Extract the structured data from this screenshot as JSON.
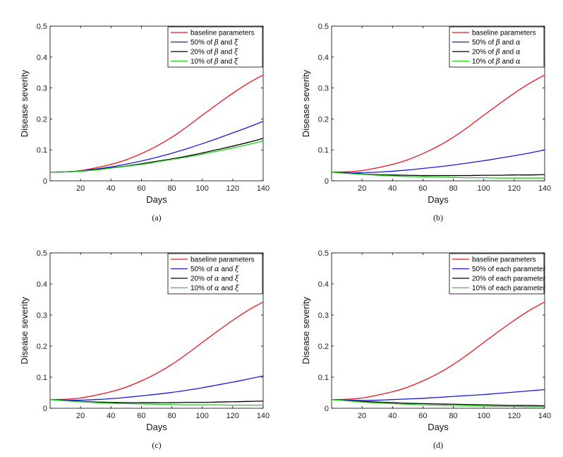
{
  "chart_data": [
    {
      "type": "line",
      "caption": "(a)",
      "xlabel": "Days",
      "ylabel": "Disease severity",
      "xlim": [
        0,
        140
      ],
      "ylim": [
        0,
        0.5
      ],
      "xticks": [
        20,
        40,
        60,
        80,
        100,
        120,
        140
      ],
      "yticks": [
        0,
        0.1,
        0.2,
        0.3,
        0.4,
        0.5
      ],
      "legend_position": "top-right",
      "x": [
        0,
        10,
        20,
        30,
        40,
        50,
        60,
        70,
        80,
        90,
        100,
        110,
        120,
        130,
        140
      ],
      "series": [
        {
          "name": "baseline parameters",
          "color": "#e8141a",
          "legend": [
            "baseline parameters"
          ],
          "values": [
            0.028,
            0.029,
            0.033,
            0.042,
            0.053,
            0.068,
            0.088,
            0.112,
            0.141,
            0.175,
            0.212,
            0.248,
            0.283,
            0.315,
            0.342
          ]
        },
        {
          "name": "50% of β and ξ",
          "color": "#1a1adc",
          "legend": [
            "50% of ",
            "β",
            " and ",
            "ξ"
          ],
          "values": [
            0.028,
            0.029,
            0.032,
            0.038,
            0.045,
            0.054,
            0.064,
            0.076,
            0.089,
            0.104,
            0.12,
            0.137,
            0.155,
            0.173,
            0.192
          ]
        },
        {
          "name": "20% of β and ξ",
          "color": "#000000",
          "legend": [
            "20% of ",
            "β",
            " and ",
            "ξ"
          ],
          "values": [
            0.028,
            0.029,
            0.031,
            0.036,
            0.042,
            0.048,
            0.055,
            0.063,
            0.071,
            0.08,
            0.09,
            0.101,
            0.112,
            0.124,
            0.137
          ]
        },
        {
          "name": "10% of β and ξ",
          "color": "#1ed21e",
          "legend": [
            "10% of ",
            "β",
            " and ",
            "ξ"
          ],
          "values": [
            0.028,
            0.029,
            0.031,
            0.035,
            0.041,
            0.047,
            0.053,
            0.061,
            0.069,
            0.077,
            0.086,
            0.096,
            0.106,
            0.117,
            0.129
          ]
        }
      ]
    },
    {
      "type": "line",
      "caption": "(b)",
      "xlabel": "Days",
      "ylabel": "Disease severity",
      "xlim": [
        0,
        140
      ],
      "ylim": [
        0,
        0.5
      ],
      "xticks": [
        20,
        40,
        60,
        80,
        100,
        120,
        140
      ],
      "yticks": [
        0,
        0.1,
        0.2,
        0.3,
        0.4,
        0.5
      ],
      "legend_position": "top-right",
      "x": [
        0,
        10,
        20,
        30,
        40,
        50,
        60,
        70,
        80,
        90,
        100,
        110,
        120,
        130,
        140
      ],
      "series": [
        {
          "name": "baseline parameters",
          "color": "#e8141a",
          "legend": [
            "baseline parameters"
          ],
          "values": [
            0.028,
            0.029,
            0.033,
            0.042,
            0.053,
            0.068,
            0.088,
            0.112,
            0.141,
            0.175,
            0.212,
            0.248,
            0.283,
            0.315,
            0.342
          ]
        },
        {
          "name": "50% of β and α",
          "color": "#1a1adc",
          "legend": [
            "50% of ",
            "β",
            " and ",
            "α"
          ],
          "values": [
            0.028,
            0.026,
            0.026,
            0.028,
            0.031,
            0.035,
            0.04,
            0.045,
            0.051,
            0.058,
            0.065,
            0.073,
            0.081,
            0.09,
            0.1
          ]
        },
        {
          "name": "20% of β and α",
          "color": "#000000",
          "legend": [
            "20% of ",
            "β",
            " and ",
            "α"
          ],
          "values": [
            0.028,
            0.025,
            0.022,
            0.02,
            0.019,
            0.018,
            0.017,
            0.017,
            0.017,
            0.017,
            0.018,
            0.018,
            0.019,
            0.019,
            0.02
          ]
        },
        {
          "name": "10% of β and α",
          "color": "#1ed21e",
          "legend": [
            "10% of ",
            "β",
            " and ",
            "α"
          ],
          "values": [
            0.028,
            0.024,
            0.021,
            0.018,
            0.016,
            0.014,
            0.013,
            0.012,
            0.011,
            0.01,
            0.01,
            0.009,
            0.009,
            0.009,
            0.009
          ]
        }
      ]
    },
    {
      "type": "line",
      "caption": "(c)",
      "xlabel": "Days",
      "ylabel": "Disease severity",
      "xlim": [
        0,
        140
      ],
      "ylim": [
        0,
        0.5
      ],
      "xticks": [
        20,
        40,
        60,
        80,
        100,
        120,
        140
      ],
      "yticks": [
        0,
        0.1,
        0.2,
        0.3,
        0.4,
        0.5
      ],
      "legend_position": "top-right",
      "x": [
        0,
        10,
        20,
        30,
        40,
        50,
        60,
        70,
        80,
        90,
        100,
        110,
        120,
        130,
        140
      ],
      "series": [
        {
          "name": "baseline parameters",
          "color": "#e8141a",
          "legend": [
            "baseline parameters"
          ],
          "values": [
            0.028,
            0.029,
            0.033,
            0.042,
            0.053,
            0.068,
            0.088,
            0.112,
            0.141,
            0.175,
            0.212,
            0.248,
            0.283,
            0.315,
            0.342
          ]
        },
        {
          "name": "50% of α and ξ",
          "color": "#1a1adc",
          "legend": [
            "50% of ",
            "α",
            " and ",
            "ξ"
          ],
          "values": [
            0.028,
            0.026,
            0.026,
            0.028,
            0.031,
            0.035,
            0.04,
            0.045,
            0.051,
            0.058,
            0.066,
            0.075,
            0.084,
            0.094,
            0.104
          ]
        },
        {
          "name": "20% of α and ξ",
          "color": "#000000",
          "legend": [
            "20% of ",
            "α",
            " and ",
            "ξ"
          ],
          "values": [
            0.028,
            0.025,
            0.022,
            0.02,
            0.019,
            0.018,
            0.018,
            0.018,
            0.018,
            0.019,
            0.019,
            0.02,
            0.021,
            0.022,
            0.023
          ]
        },
        {
          "name": "10% of α and ξ",
          "color": "#1ed21e",
          "legend": [
            "10% of ",
            "α",
            " and ",
            "ξ"
          ],
          "values": [
            0.028,
            0.024,
            0.021,
            0.018,
            0.016,
            0.015,
            0.014,
            0.013,
            0.012,
            0.011,
            0.011,
            0.011,
            0.01,
            0.01,
            0.01
          ]
        }
      ]
    },
    {
      "type": "line",
      "caption": "(d)",
      "xlabel": "Days",
      "ylabel": "Disease severity",
      "xlim": [
        0,
        140
      ],
      "ylim": [
        0,
        0.5
      ],
      "xticks": [
        20,
        40,
        60,
        80,
        100,
        120,
        140
      ],
      "yticks": [
        0,
        0.1,
        0.2,
        0.3,
        0.4,
        0.5
      ],
      "legend_position": "top-right",
      "x": [
        0,
        10,
        20,
        30,
        40,
        50,
        60,
        70,
        80,
        90,
        100,
        110,
        120,
        130,
        140
      ],
      "series": [
        {
          "name": "baseline parameters",
          "color": "#e8141a",
          "legend": [
            "baseline parameters"
          ],
          "values": [
            0.028,
            0.029,
            0.033,
            0.042,
            0.053,
            0.068,
            0.088,
            0.112,
            0.141,
            0.175,
            0.212,
            0.248,
            0.283,
            0.315,
            0.342
          ]
        },
        {
          "name": "50% of each parameter",
          "color": "#1a1adc",
          "legend": [
            "50% of each parameter"
          ],
          "values": [
            0.028,
            0.026,
            0.025,
            0.026,
            0.028,
            0.03,
            0.032,
            0.035,
            0.038,
            0.041,
            0.044,
            0.048,
            0.052,
            0.056,
            0.06
          ]
        },
        {
          "name": "20% of each parameter",
          "color": "#000000",
          "legend": [
            "20% of each parameter"
          ],
          "values": [
            0.028,
            0.025,
            0.022,
            0.02,
            0.018,
            0.016,
            0.015,
            0.014,
            0.013,
            0.012,
            0.011,
            0.01,
            0.009,
            0.009,
            0.008
          ]
        },
        {
          "name": "10% of each parameter",
          "color": "#1ed21e",
          "legend": [
            "10% of each parameter"
          ],
          "values": [
            0.028,
            0.024,
            0.02,
            0.017,
            0.015,
            0.013,
            0.011,
            0.01,
            0.009,
            0.008,
            0.007,
            0.006,
            0.006,
            0.005,
            0.005
          ]
        }
      ]
    }
  ]
}
